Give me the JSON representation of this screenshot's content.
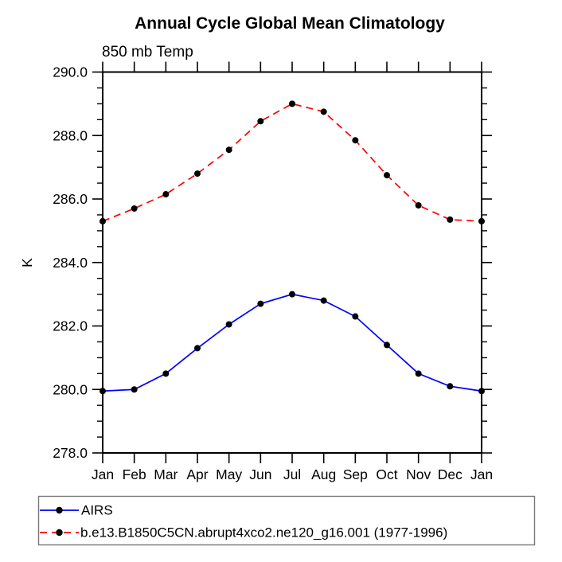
{
  "chart_data": {
    "type": "line",
    "title": "Annual Cycle Global Mean Climatology",
    "subtitle": "850 mb Temp",
    "ylabel": "K",
    "xlabel": "",
    "categories": [
      "Jan",
      "Feb",
      "Mar",
      "Apr",
      "May",
      "Jun",
      "Jul",
      "Aug",
      "Sep",
      "Oct",
      "Nov",
      "Dec",
      "Jan"
    ],
    "ylim": [
      278.0,
      290.0
    ],
    "ytick_step": 2.0,
    "ytick_minor_step": 0.5,
    "ytick_labels": [
      "278.0",
      "280.0",
      "282.0",
      "284.0",
      "286.0",
      "288.0",
      "290.0"
    ],
    "grid": false,
    "legend_position": "bottom-left-box",
    "axis_color": "#000000",
    "background_color": "#ffffff",
    "series": [
      {
        "name": "AIRS",
        "color": "#0000ff",
        "line_style": "solid",
        "marker": "filled-circle",
        "marker_color": "#000000",
        "values": [
          279.95,
          280.0,
          280.5,
          281.3,
          282.05,
          282.7,
          283.0,
          282.8,
          282.3,
          281.4,
          280.5,
          280.1,
          279.95
        ]
      },
      {
        "name": "b.e13.B1850C5CN.abrupt4xco2.ne120_g16.001 (1977-1996)",
        "color": "#ff0000",
        "line_style": "dashed",
        "marker": "filled-circle",
        "marker_color": "#000000",
        "values": [
          285.3,
          285.7,
          286.15,
          286.8,
          287.55,
          288.45,
          289.0,
          288.75,
          287.85,
          286.75,
          285.8,
          285.35,
          285.3
        ]
      }
    ]
  }
}
